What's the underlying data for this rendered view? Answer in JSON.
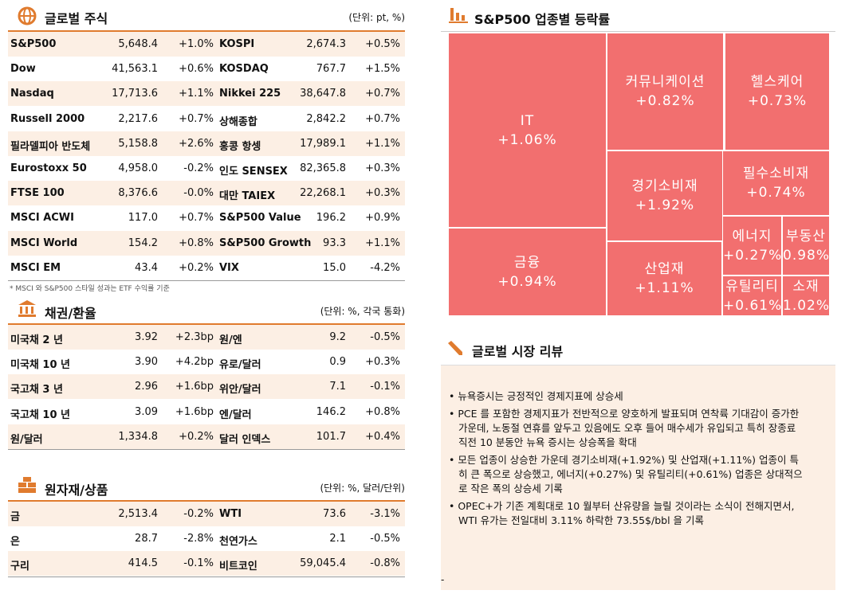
{
  "equities": {
    "title": "글로벌 주식",
    "unit": "(단위: pt, %)",
    "rows": [
      [
        "S&P500",
        "5,648.4",
        "+1.0%",
        "KOSPI",
        "2,674.3",
        "+0.5%"
      ],
      [
        "Dow",
        "41,563.1",
        "+0.6%",
        "KOSDAQ",
        "767.7",
        "+1.5%"
      ],
      [
        "Nasdaq",
        "17,713.6",
        "+1.1%",
        "Nikkei 225",
        "38,647.8",
        "+0.7%"
      ],
      [
        "Russell 2000",
        "2,217.6",
        "+0.7%",
        "상해종합",
        "2,842.2",
        "+0.7%"
      ],
      [
        "필라델피아 반도체",
        "5,158.8",
        "+2.6%",
        "홍콩 항셍",
        "17,989.1",
        "+1.1%"
      ],
      [
        "Eurostoxx 50",
        "4,958.0",
        "-0.2%",
        "인도 SENSEX",
        "82,365.8",
        "+0.3%"
      ],
      [
        "FTSE 100",
        "8,376.6",
        "-0.0%",
        "대만 TAIEX",
        "22,268.1",
        "+0.3%"
      ],
      [
        "MSCI ACWI",
        "117.0",
        "+0.7%",
        "S&P500 Value",
        "196.2",
        "+0.9%"
      ],
      [
        "MSCI World",
        "154.2",
        "+0.8%",
        "S&P500 Growth",
        "93.3",
        "+1.1%"
      ],
      [
        "MSCI EM",
        "43.4",
        "+0.2%",
        "VIX",
        "15.0",
        "-4.2%"
      ]
    ],
    "footnote": "* MSCI 와 S&P500 스타일 성과는 ETF 수익률 기준"
  },
  "bonds": {
    "title": "채권/환율",
    "unit": "(단위: %, 각국 통화)",
    "rows": [
      [
        "미국채 2 년",
        "3.92",
        "+2.3bp",
        "원/엔",
        "9.2",
        "-0.5%"
      ],
      [
        "미국채 10 년",
        "3.90",
        "+4.2bp",
        "유로/달러",
        "0.9",
        "+0.3%"
      ],
      [
        "국고채 3 년",
        "2.96",
        "+1.6bp",
        "위안/달러",
        "7.1",
        "-0.1%"
      ],
      [
        "국고채 10 년",
        "3.09",
        "+1.6bp",
        "엔/달러",
        "146.2",
        "+0.8%"
      ],
      [
        "원/달러",
        "1,334.8",
        "+0.2%",
        "달러 인덱스",
        "101.7",
        "+0.4%"
      ]
    ]
  },
  "commodities": {
    "title": "원자재/상품",
    "unit": "(단위: %, 달러/단위)",
    "rows": [
      [
        "금",
        "2,513.4",
        "-0.2%",
        "WTI",
        "73.6",
        "-3.1%"
      ],
      [
        "은",
        "28.7",
        "-2.8%",
        "천연가스",
        "2.1",
        "-0.5%"
      ],
      [
        "구리",
        "414.5",
        "-0.1%",
        "비트코인",
        "59,045.4",
        "-0.8%"
      ]
    ]
  },
  "treemap": {
    "title": "S&P500 업종별 등락률",
    "cells": [
      {
        "label": "IT",
        "value": "+1.06%"
      },
      {
        "label": "금융",
        "value": "+0.94%"
      },
      {
        "label": "커뮤니케이션",
        "value": "+0.82%"
      },
      {
        "label": "헬스케어",
        "value": "+0.73%"
      },
      {
        "label": "경기소비재",
        "value": "+1.92%"
      },
      {
        "label": "필수소비재",
        "value": "+0.74%"
      },
      {
        "label": "산업재",
        "value": "+1.11%"
      },
      {
        "label": "에너지",
        "value": "+0.27%"
      },
      {
        "label": "부동산",
        "value": "0.98%"
      },
      {
        "label": "유틸리티",
        "value": "+0.61%"
      },
      {
        "label": "소재",
        "value": "1.02%"
      }
    ]
  },
  "review": {
    "title": "글로벌 시장 리뷰",
    "bullets": [
      "• 뉴욕증시는 긍정적인 경제지표에 상승세",
      "• PCE 를 포함한 경제지표가 전반적으로 양호하게 발표되며 연착륙 기대감이 증가한 가운데, 노동절 연휴를 앞두고 있음에도 오후 들어 매수세가 유입되고 특히 장종료 직전 10 분동안 뉴욕 증시는 상승폭을 확대",
      "• 모든 업종이 상승한 가운데 경기소비재(+1.92%) 및 산업재(+1.11%) 업종이 특히 큰 폭으로 상승했고, 에너지(+0.27%) 및 유틸리티(+0.61%) 업종은 상대적으로 작은 폭의 상승세 기록",
      "• OPEC+가 기존 계획대로 10 월부터 산유량을 늘릴 것이라는 소식이 전해지면서, WTI 유가는 전일대비 3.11% 하락한 73.55$/bbl 을 기록"
    ],
    "footer": "-"
  }
}
